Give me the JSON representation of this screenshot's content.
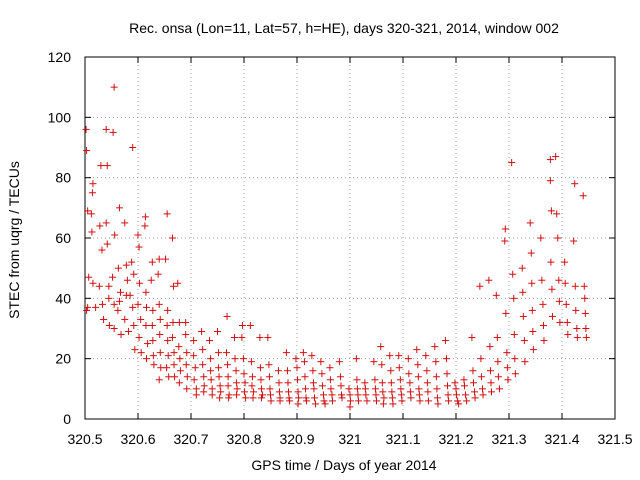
{
  "chart_data": {
    "type": "scatter",
    "title": "Rec. onsa (Lon=11, Lat=57, h=HE), days 320-321, 2014, window 002",
    "xlabel": "GPS time / Days of year 2014",
    "ylabel": "STEC from uqrg / TECUs",
    "xlim": [
      320.5,
      321.5
    ],
    "ylim": [
      0,
      120
    ],
    "xticks": [
      320.5,
      320.6,
      320.7,
      320.8,
      320.9,
      321,
      321.1,
      321.2,
      321.3,
      321.4,
      321.5
    ],
    "xtick_labels": [
      "320.5",
      "320.6",
      "320.7",
      "320.8",
      "320.9",
      "321",
      "321.1",
      "321.2",
      "321.3",
      "321.4",
      "321.5"
    ],
    "yticks": [
      0,
      20,
      40,
      60,
      80,
      100,
      120
    ],
    "ytick_labels": [
      "0",
      "20",
      "40",
      "60",
      "80",
      "100",
      "120"
    ],
    "grid": true,
    "marker": "+",
    "color": "#d01010",
    "points": [
      [
        320.502,
        96
      ],
      [
        320.503,
        89
      ],
      [
        320.505,
        69
      ],
      [
        320.507,
        47
      ],
      [
        320.505,
        37
      ],
      [
        320.503,
        36
      ],
      [
        320.515,
        78
      ],
      [
        320.514,
        75
      ],
      [
        320.512,
        68
      ],
      [
        320.513,
        62
      ],
      [
        320.515,
        45
      ],
      [
        320.52,
        37
      ],
      [
        320.53,
        84
      ],
      [
        320.528,
        64
      ],
      [
        320.532,
        56
      ],
      [
        320.527,
        44
      ],
      [
        320.533,
        38
      ],
      [
        320.535,
        33
      ],
      [
        320.54,
        96
      ],
      [
        320.542,
        84
      ],
      [
        320.54,
        65
      ],
      [
        320.542,
        58
      ],
      [
        320.545,
        44
      ],
      [
        320.545,
        40
      ],
      [
        320.546,
        31
      ],
      [
        320.555,
        110
      ],
      [
        320.553,
        95
      ],
      [
        320.556,
        61
      ],
      [
        320.552,
        47
      ],
      [
        320.555,
        38
      ],
      [
        320.555,
        30
      ],
      [
        320.565,
        70
      ],
      [
        320.563,
        50
      ],
      [
        320.567,
        42
      ],
      [
        320.565,
        39
      ],
      [
        320.562,
        36
      ],
      [
        320.568,
        28
      ],
      [
        320.575,
        65
      ],
      [
        320.578,
        51
      ],
      [
        320.58,
        46
      ],
      [
        320.578,
        41
      ],
      [
        320.575,
        33
      ],
      [
        320.582,
        29
      ],
      [
        320.59,
        90
      ],
      [
        320.588,
        52
      ],
      [
        320.592,
        48
      ],
      [
        320.585,
        41
      ],
      [
        320.59,
        37
      ],
      [
        320.592,
        31
      ],
      [
        320.594,
        23
      ],
      [
        320.6,
        61
      ],
      [
        320.602,
        57
      ],
      [
        320.603,
        45
      ],
      [
        320.6,
        38
      ],
      [
        320.605,
        33
      ],
      [
        320.602,
        27
      ],
      [
        320.606,
        22
      ],
      [
        320.614,
        67
      ],
      [
        320.613,
        64
      ],
      [
        320.615,
        42
      ],
      [
        320.616,
        37
      ],
      [
        320.615,
        31
      ],
      [
        320.618,
        25
      ],
      [
        320.616,
        20
      ],
      [
        320.627,
        52
      ],
      [
        320.625,
        46
      ],
      [
        320.628,
        36
      ],
      [
        320.627,
        31
      ],
      [
        320.628,
        26
      ],
      [
        320.629,
        21
      ],
      [
        320.63,
        18
      ],
      [
        320.64,
        53
      ],
      [
        320.638,
        48
      ],
      [
        320.64,
        38
      ],
      [
        320.642,
        33
      ],
      [
        320.641,
        28
      ],
      [
        320.642,
        22
      ],
      [
        320.643,
        17
      ],
      [
        320.64,
        13
      ],
      [
        320.655,
        68
      ],
      [
        320.652,
        53
      ],
      [
        320.656,
        36
      ],
      [
        320.655,
        31
      ],
      [
        320.656,
        26
      ],
      [
        320.657,
        21
      ],
      [
        320.654,
        17
      ],
      [
        320.658,
        14
      ],
      [
        320.665,
        60
      ],
      [
        320.667,
        44
      ],
      [
        320.666,
        32
      ],
      [
        320.665,
        27
      ],
      [
        320.668,
        22
      ],
      [
        320.668,
        18
      ],
      [
        320.669,
        14
      ],
      [
        320.675,
        45
      ],
      [
        320.678,
        32
      ],
      [
        320.677,
        24
      ],
      [
        320.679,
        20
      ],
      [
        320.68,
        16
      ],
      [
        320.678,
        12
      ],
      [
        320.69,
        32
      ],
      [
        320.69,
        28
      ],
      [
        320.692,
        22
      ],
      [
        320.691,
        18
      ],
      [
        320.693,
        14
      ],
      [
        320.692,
        10
      ],
      [
        320.705,
        26
      ],
      [
        320.705,
        21
      ],
      [
        320.708,
        17
      ],
      [
        320.706,
        13
      ],
      [
        320.71,
        10
      ],
      [
        320.71,
        8
      ],
      [
        320.72,
        29
      ],
      [
        320.722,
        23
      ],
      [
        320.722,
        18
      ],
      [
        320.724,
        14
      ],
      [
        320.725,
        11
      ],
      [
        320.724,
        9
      ],
      [
        320.735,
        26
      ],
      [
        320.737,
        20
      ],
      [
        320.737,
        16
      ],
      [
        320.738,
        13
      ],
      [
        320.74,
        10
      ],
      [
        320.74,
        8
      ],
      [
        320.75,
        29
      ],
      [
        320.752,
        22
      ],
      [
        320.752,
        17
      ],
      [
        320.753,
        14
      ],
      [
        320.755,
        11
      ],
      [
        320.756,
        9
      ],
      [
        320.754,
        7
      ],
      [
        320.768,
        34
      ],
      [
        320.767,
        22
      ],
      [
        320.769,
        18
      ],
      [
        320.77,
        14
      ],
      [
        320.77,
        11
      ],
      [
        320.772,
        8
      ],
      [
        320.771,
        7
      ],
      [
        320.782,
        27
      ],
      [
        320.783,
        20
      ],
      [
        320.785,
        16
      ],
      [
        320.786,
        12
      ],
      [
        320.787,
        10
      ],
      [
        320.786,
        8
      ],
      [
        320.797,
        31
      ],
      [
        320.796,
        27
      ],
      [
        320.799,
        20
      ],
      [
        320.8,
        15
      ],
      [
        320.802,
        12
      ],
      [
        320.801,
        9
      ],
      [
        320.803,
        7
      ],
      [
        320.812,
        31
      ],
      [
        320.814,
        19
      ],
      [
        320.816,
        14
      ],
      [
        320.815,
        11
      ],
      [
        320.818,
        9
      ],
      [
        320.817,
        7
      ],
      [
        320.83,
        27
      ],
      [
        320.831,
        17
      ],
      [
        320.832,
        13
      ],
      [
        320.833,
        10
      ],
      [
        320.835,
        8
      ],
      [
        320.833,
        7
      ],
      [
        320.845,
        27
      ],
      [
        320.847,
        18
      ],
      [
        320.848,
        14
      ],
      [
        320.849,
        10
      ],
      [
        320.85,
        8
      ],
      [
        320.851,
        6
      ],
      [
        320.865,
        16
      ],
      [
        320.866,
        12
      ],
      [
        320.867,
        9
      ],
      [
        320.868,
        7
      ],
      [
        320.868,
        6
      ],
      [
        320.88,
        22
      ],
      [
        320.882,
        16
      ],
      [
        320.883,
        12
      ],
      [
        320.884,
        9
      ],
      [
        320.885,
        7
      ],
      [
        320.886,
        6
      ],
      [
        320.898,
        20
      ],
      [
        320.9,
        17
      ],
      [
        320.901,
        13
      ],
      [
        320.902,
        9
      ],
      [
        320.903,
        7
      ],
      [
        320.902,
        5
      ],
      [
        320.912,
        22
      ],
      [
        320.914,
        19
      ],
      [
        320.915,
        14
      ],
      [
        320.916,
        10
      ],
      [
        320.917,
        7
      ],
      [
        320.918,
        6
      ],
      [
        320.928,
        21
      ],
      [
        320.93,
        16
      ],
      [
        320.931,
        12
      ],
      [
        320.932,
        10
      ],
      [
        320.933,
        7
      ],
      [
        320.935,
        5
      ],
      [
        320.945,
        19
      ],
      [
        320.947,
        15
      ],
      [
        320.948,
        11
      ],
      [
        320.95,
        8
      ],
      [
        320.951,
        6
      ],
      [
        320.953,
        5
      ],
      [
        320.962,
        17
      ],
      [
        320.963,
        13
      ],
      [
        320.964,
        10
      ],
      [
        320.966,
        8
      ],
      [
        320.967,
        6
      ],
      [
        320.98,
        19
      ],
      [
        320.982,
        14
      ],
      [
        320.983,
        11
      ],
      [
        320.984,
        8
      ],
      [
        320.985,
        7
      ],
      [
        320.998,
        10
      ],
      [
        321.0,
        8
      ],
      [
        321.001,
        6
      ],
      [
        321.0,
        4
      ],
      [
        321.012,
        20
      ],
      [
        321.013,
        13
      ],
      [
        321.014,
        10
      ],
      [
        321.015,
        8
      ],
      [
        321.016,
        6
      ],
      [
        321.028,
        12
      ],
      [
        321.029,
        10
      ],
      [
        321.03,
        8
      ],
      [
        321.032,
        6
      ],
      [
        321.045,
        19
      ],
      [
        321.047,
        13
      ],
      [
        321.048,
        10
      ],
      [
        321.049,
        8
      ],
      [
        321.05,
        6
      ],
      [
        321.058,
        24
      ],
      [
        321.06,
        18
      ],
      [
        321.061,
        12
      ],
      [
        321.062,
        9
      ],
      [
        321.064,
        7
      ],
      [
        321.063,
        5
      ],
      [
        321.075,
        21
      ],
      [
        321.077,
        16
      ],
      [
        321.078,
        12
      ],
      [
        321.079,
        9
      ],
      [
        321.08,
        7
      ],
      [
        321.081,
        5
      ],
      [
        321.092,
        21
      ],
      [
        321.093,
        17
      ],
      [
        321.095,
        13
      ],
      [
        321.096,
        10
      ],
      [
        321.097,
        8
      ],
      [
        321.098,
        6
      ],
      [
        321.11,
        20
      ],
      [
        321.111,
        15
      ],
      [
        321.113,
        12
      ],
      [
        321.114,
        9
      ],
      [
        321.115,
        7
      ],
      [
        321.126,
        23
      ],
      [
        321.128,
        18
      ],
      [
        321.129,
        14
      ],
      [
        321.13,
        10
      ],
      [
        321.131,
        8
      ],
      [
        321.132,
        6
      ],
      [
        321.143,
        21
      ],
      [
        321.145,
        16
      ],
      [
        321.146,
        12
      ],
      [
        321.147,
        9
      ],
      [
        321.148,
        6
      ],
      [
        321.16,
        24
      ],
      [
        321.162,
        19
      ],
      [
        321.163,
        14
      ],
      [
        321.164,
        10
      ],
      [
        321.165,
        7
      ],
      [
        321.166,
        5
      ],
      [
        321.18,
        26
      ],
      [
        321.182,
        20
      ],
      [
        321.183,
        15
      ],
      [
        321.184,
        11
      ],
      [
        321.185,
        8
      ],
      [
        321.186,
        6
      ],
      [
        321.198,
        12
      ],
      [
        321.2,
        10
      ],
      [
        321.201,
        8
      ],
      [
        321.203,
        6
      ],
      [
        321.205,
        5
      ],
      [
        321.215,
        13
      ],
      [
        321.216,
        11
      ],
      [
        321.218,
        8
      ],
      [
        321.22,
        6
      ],
      [
        321.23,
        27
      ],
      [
        321.232,
        16
      ],
      [
        321.233,
        12
      ],
      [
        321.235,
        9
      ],
      [
        321.236,
        7
      ],
      [
        321.245,
        44
      ],
      [
        321.247,
        20
      ],
      [
        321.248,
        14
      ],
      [
        321.25,
        10
      ],
      [
        321.251,
        8
      ],
      [
        321.262,
        46
      ],
      [
        321.264,
        24
      ],
      [
        321.265,
        16
      ],
      [
        321.266,
        12
      ],
      [
        321.267,
        9
      ],
      [
        321.276,
        41
      ],
      [
        321.278,
        27
      ],
      [
        321.279,
        19
      ],
      [
        321.28,
        14
      ],
      [
        321.282,
        10
      ],
      [
        321.293,
        63
      ],
      [
        321.292,
        59
      ],
      [
        321.294,
        35
      ],
      [
        321.296,
        22
      ],
      [
        321.297,
        17
      ],
      [
        321.298,
        13
      ],
      [
        321.305,
        85
      ],
      [
        321.307,
        48
      ],
      [
        321.309,
        40
      ],
      [
        321.31,
        28
      ],
      [
        321.311,
        20
      ],
      [
        321.312,
        15
      ],
      [
        321.325,
        50
      ],
      [
        321.326,
        42
      ],
      [
        321.327,
        34
      ],
      [
        321.329,
        26
      ],
      [
        321.33,
        19
      ],
      [
        321.34,
        65
      ],
      [
        321.342,
        55
      ],
      [
        321.343,
        45
      ],
      [
        321.344,
        36
      ],
      [
        321.345,
        29
      ],
      [
        321.346,
        23
      ],
      [
        321.36,
        60
      ],
      [
        321.362,
        46
      ],
      [
        321.364,
        38
      ],
      [
        321.365,
        31
      ],
      [
        321.366,
        26
      ],
      [
        321.378,
        86
      ],
      [
        321.378,
        79
      ],
      [
        321.38,
        69
      ],
      [
        321.379,
        52
      ],
      [
        321.381,
        43
      ],
      [
        321.382,
        34
      ],
      [
        321.388,
        87
      ],
      [
        321.39,
        68
      ],
      [
        321.392,
        60
      ],
      [
        321.394,
        46
      ],
      [
        321.395,
        39
      ],
      [
        321.396,
        32
      ],
      [
        321.405,
        52
      ],
      [
        321.406,
        45
      ],
      [
        321.408,
        38
      ],
      [
        321.41,
        32
      ],
      [
        321.411,
        28
      ],
      [
        321.424,
        78
      ],
      [
        321.422,
        59
      ],
      [
        321.425,
        44
      ],
      [
        321.426,
        36
      ],
      [
        321.428,
        30
      ],
      [
        321.429,
        27
      ],
      [
        321.44,
        74
      ],
      [
        321.442,
        44
      ],
      [
        321.443,
        40
      ],
      [
        321.444,
        35
      ],
      [
        321.445,
        30
      ],
      [
        321.446,
        27
      ]
    ]
  }
}
